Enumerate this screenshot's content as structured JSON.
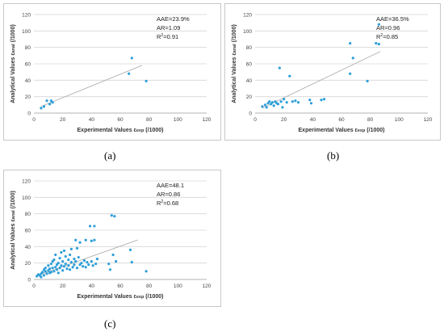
{
  "chart_data": [
    {
      "type": "scatter",
      "panel": "(a)",
      "xlabel": "Experimental Values εexp (/1000)",
      "ylabel": "Analytical Values εanal (/1000)",
      "xlim": [
        0,
        120
      ],
      "ylim": [
        0,
        120
      ],
      "xticks": [
        "0",
        "20",
        "40",
        "60",
        "80",
        "100",
        "120"
      ],
      "yticks": [
        "0",
        "20",
        "40",
        "60",
        "80",
        "100",
        "120"
      ],
      "grid": "horizontal",
      "stats": [
        "AAE=23.9%",
        "AR=1.09",
        "R²=0.91"
      ],
      "points": [
        [
          5,
          6
        ],
        [
          7,
          8
        ],
        [
          9,
          15
        ],
        [
          11,
          11
        ],
        [
          13,
          13
        ],
        [
          12,
          15
        ],
        [
          66,
          48
        ],
        [
          68,
          67
        ],
        [
          78,
          39
        ]
      ],
      "trendline": [
        [
          5,
          8
        ],
        [
          75,
          58
        ]
      ],
      "color": "#2e9fd9"
    },
    {
      "type": "scatter",
      "panel": "(b)",
      "xlabel": "Experimental Values εexp (/1000)",
      "ylabel": "Analytical Values εanal (/1000)",
      "xlim": [
        0,
        120
      ],
      "ylim": [
        0,
        120
      ],
      "xticks": [
        "0",
        "20",
        "40",
        "60",
        "80",
        "100",
        "120"
      ],
      "yticks": [
        "0",
        "20",
        "40",
        "60",
        "80",
        "100",
        "120"
      ],
      "grid": "horizontal",
      "stats": [
        "AAE=36.5%",
        "AR=0.96",
        "R²=0.85"
      ],
      "points": [
        [
          5,
          8
        ],
        [
          7,
          10
        ],
        [
          8,
          7
        ],
        [
          9,
          12
        ],
        [
          10,
          14
        ],
        [
          11,
          11
        ],
        [
          12,
          13
        ],
        [
          13,
          9
        ],
        [
          14,
          14
        ],
        [
          15,
          12
        ],
        [
          16,
          11
        ],
        [
          17,
          55
        ],
        [
          18,
          14
        ],
        [
          19,
          7
        ],
        [
          20,
          17
        ],
        [
          22,
          13
        ],
        [
          24,
          45
        ],
        [
          26,
          14
        ],
        [
          28,
          15
        ],
        [
          30,
          13
        ],
        [
          38,
          16
        ],
        [
          39,
          12
        ],
        [
          46,
          16
        ],
        [
          48,
          17
        ],
        [
          66,
          85
        ],
        [
          66,
          48
        ],
        [
          68,
          67
        ],
        [
          78,
          39
        ],
        [
          84,
          85
        ],
        [
          86,
          84
        ],
        [
          86,
          108
        ]
      ],
      "trendline": [
        [
          5,
          6
        ],
        [
          87,
          75
        ]
      ],
      "color": "#2e9fd9"
    },
    {
      "type": "scatter",
      "panel": "(c)",
      "xlabel": "Experimental Values εexp (/1000)",
      "ylabel": "Analytical Values εanal (/1000)",
      "xlim": [
        0,
        120
      ],
      "ylim": [
        0,
        120
      ],
      "xticks": [
        "0",
        "20",
        "40",
        "60",
        "80",
        "100",
        "120"
      ],
      "yticks": [
        "0",
        "20",
        "40",
        "60",
        "80",
        "100",
        "120"
      ],
      "grid": "horizontal",
      "stats": [
        "AAE=48.1",
        "AR=0.86",
        "R²=0.68"
      ],
      "points": [
        [
          2,
          4
        ],
        [
          3,
          6
        ],
        [
          4,
          5
        ],
        [
          5,
          7
        ],
        [
          5,
          3
        ],
        [
          6,
          9
        ],
        [
          7,
          12
        ],
        [
          7,
          5
        ],
        [
          8,
          10
        ],
        [
          8,
          14
        ],
        [
          9,
          7
        ],
        [
          10,
          11
        ],
        [
          10,
          17
        ],
        [
          11,
          13
        ],
        [
          11,
          8
        ],
        [
          12,
          19
        ],
        [
          12,
          9
        ],
        [
          13,
          22
        ],
        [
          13,
          14
        ],
        [
          14,
          24
        ],
        [
          14,
          10
        ],
        [
          15,
          15
        ],
        [
          15,
          30
        ],
        [
          16,
          18
        ],
        [
          16,
          12
        ],
        [
          17,
          20
        ],
        [
          17,
          8
        ],
        [
          18,
          26
        ],
        [
          18,
          14
        ],
        [
          19,
          33
        ],
        [
          19,
          17
        ],
        [
          20,
          22
        ],
        [
          20,
          11
        ],
        [
          21,
          35
        ],
        [
          21,
          16
        ],
        [
          22,
          28
        ],
        [
          22,
          19
        ],
        [
          23,
          13
        ],
        [
          24,
          24
        ],
        [
          24,
          17
        ],
        [
          25,
          30
        ],
        [
          25,
          12
        ],
        [
          26,
          37
        ],
        [
          26,
          21
        ],
        [
          27,
          15
        ],
        [
          28,
          25
        ],
        [
          28,
          18
        ],
        [
          29,
          48
        ],
        [
          29,
          22
        ],
        [
          30,
          38
        ],
        [
          30,
          14
        ],
        [
          31,
          27
        ],
        [
          32,
          45
        ],
        [
          32,
          18
        ],
        [
          33,
          20
        ],
        [
          34,
          16
        ],
        [
          35,
          23
        ],
        [
          36,
          48
        ],
        [
          36,
          15
        ],
        [
          37,
          21
        ],
        [
          38,
          18
        ],
        [
          39,
          65
        ],
        [
          40,
          47
        ],
        [
          40,
          22
        ],
        [
          41,
          17
        ],
        [
          42,
          65
        ],
        [
          42,
          48
        ],
        [
          43,
          19
        ],
        [
          44,
          25
        ],
        [
          52,
          19
        ],
        [
          53,
          12
        ],
        [
          54,
          78
        ],
        [
          55,
          30
        ],
        [
          56,
          77
        ],
        [
          57,
          22
        ],
        [
          67,
          36
        ],
        [
          68,
          21
        ],
        [
          78,
          10
        ]
      ],
      "trendline": [
        [
          3,
          5
        ],
        [
          72,
          48
        ]
      ],
      "color": "#2e9fd9"
    }
  ],
  "captions": [
    "(a)",
    "(b)",
    "(c)"
  ]
}
